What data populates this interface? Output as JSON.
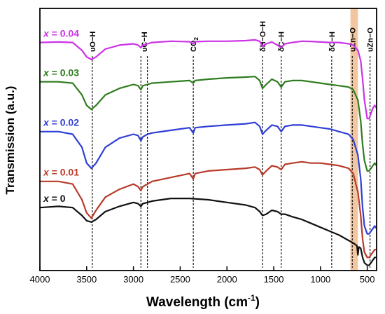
{
  "chart_data": {
    "type": "line",
    "xlabel": "Wavelength (cm",
    "xlabel_sup": "-1",
    "xlabel_end": ")",
    "ylabel": "Transmission (a.u.)",
    "xlim": [
      4000,
      400
    ],
    "x_reversed": true,
    "ylim": [
      0,
      100
    ],
    "grid": false,
    "xticks": [
      4000,
      3500,
      3000,
      2500,
      2000,
      1500,
      1000,
      500
    ],
    "series": [
      {
        "name": "x = 0.04",
        "prefix": "x",
        "value_text": " = 0.04",
        "color": "#CC33E6",
        "x": [
          4000,
          3800,
          3650,
          3550,
          3500,
          3450,
          3400,
          3300,
          3150,
          3000,
          2950,
          2920,
          2900,
          2850,
          2800,
          2600,
          2400,
          2360,
          2340,
          2200,
          2000,
          1800,
          1700,
          1650,
          1620,
          1580,
          1520,
          1460,
          1420,
          1380,
          1300,
          1200,
          1100,
          1000,
          900,
          800,
          700,
          650,
          600,
          570,
          550,
          530,
          500,
          480,
          460,
          440,
          420,
          400
        ],
        "y": [
          87,
          87.2,
          87,
          84,
          81.5,
          80.5,
          81.5,
          84.5,
          86,
          86.5,
          86,
          85,
          86,
          86.5,
          87,
          87.5,
          87.3,
          86.5,
          87.3,
          87.5,
          87.5,
          87.7,
          88,
          87.5,
          85.5,
          86.5,
          87.2,
          86,
          85,
          86.5,
          87,
          87.5,
          87.4,
          87.2,
          87,
          87,
          86.5,
          86,
          84,
          80,
          73,
          65,
          58,
          58,
          60,
          62,
          63,
          62
        ]
      },
      {
        "name": "x = 0.03",
        "prefix": "x",
        "value_text": " = 0.03",
        "color": "#2E7D1F",
        "x": [
          4000,
          3800,
          3650,
          3550,
          3500,
          3450,
          3400,
          3300,
          3150,
          3000,
          2950,
          2920,
          2900,
          2850,
          2800,
          2600,
          2400,
          2360,
          2340,
          2200,
          2000,
          1800,
          1700,
          1650,
          1620,
          1580,
          1520,
          1460,
          1420,
          1380,
          1300,
          1200,
          1100,
          1000,
          900,
          800,
          700,
          650,
          600,
          570,
          550,
          530,
          500,
          480,
          460,
          440,
          420,
          400
        ],
        "y": [
          72,
          72,
          71.5,
          67,
          63,
          61.5,
          63,
          67,
          69.5,
          71,
          70.5,
          69,
          70.5,
          71,
          71.5,
          72,
          72.5,
          71.5,
          72.5,
          73,
          73.5,
          73.8,
          74,
          72.5,
          69.5,
          71,
          73,
          72,
          70,
          72,
          72.5,
          72.5,
          72,
          71.5,
          71,
          70.5,
          70,
          69,
          65,
          57,
          48,
          42,
          38,
          38,
          39,
          40,
          41,
          40
        ]
      },
      {
        "name": "x = 0.02",
        "prefix": "x",
        "value_text": " = 0.02",
        "color": "#2F3FD6",
        "x": [
          4000,
          3800,
          3650,
          3550,
          3500,
          3450,
          3400,
          3300,
          3150,
          3000,
          2950,
          2920,
          2900,
          2850,
          2800,
          2600,
          2400,
          2360,
          2340,
          2200,
          2000,
          1800,
          1700,
          1650,
          1620,
          1580,
          1520,
          1460,
          1420,
          1380,
          1300,
          1200,
          1100,
          1000,
          900,
          800,
          700,
          650,
          600,
          570,
          550,
          530,
          500,
          480,
          460,
          440,
          420,
          400
        ],
        "y": [
          53,
          53,
          52,
          47,
          41,
          39,
          41,
          47,
          50.5,
          52,
          51.5,
          49.5,
          51,
          52,
          52.5,
          53.5,
          54.5,
          52.5,
          54.5,
          55,
          55.5,
          56,
          56.5,
          55,
          52,
          53.5,
          55.5,
          55,
          53,
          55,
          55.5,
          55.5,
          55,
          54.5,
          54,
          53,
          52,
          50,
          44,
          35,
          24,
          17,
          14,
          14,
          15,
          16,
          17,
          16
        ]
      },
      {
        "name": "x = 0.01",
        "prefix": "x",
        "value_text": " = 0.01",
        "color": "#B83A2A",
        "x": [
          4000,
          3800,
          3650,
          3550,
          3500,
          3450,
          3400,
          3300,
          3150,
          3000,
          2950,
          2920,
          2900,
          2850,
          2800,
          2600,
          2400,
          2360,
          2340,
          2200,
          2000,
          1800,
          1700,
          1650,
          1620,
          1580,
          1520,
          1460,
          1420,
          1380,
          1300,
          1200,
          1100,
          1000,
          900,
          800,
          700,
          650,
          600,
          570,
          550,
          530,
          500,
          480,
          460,
          440,
          420,
          400
        ],
        "y": [
          34,
          34,
          33,
          27,
          22,
          20,
          23,
          28,
          31,
          33,
          32,
          30.5,
          32,
          33,
          34,
          35.5,
          37,
          35,
          37,
          38,
          38.5,
          39,
          39.5,
          38.5,
          36.5,
          38,
          40,
          39.5,
          38.5,
          40.5,
          41,
          41.5,
          41,
          41,
          40.5,
          40,
          39,
          37,
          30,
          21,
          12,
          7,
          5,
          5,
          6,
          7,
          8,
          8
        ]
      },
      {
        "name": "x = 0",
        "prefix": "x",
        "value_text": " = 0",
        "color": "#111111",
        "x": [
          4000,
          3800,
          3650,
          3550,
          3500,
          3450,
          3400,
          3300,
          3150,
          3000,
          2950,
          2920,
          2900,
          2850,
          2800,
          2600,
          2400,
          2200,
          2000,
          1800,
          1700,
          1650,
          1620,
          1580,
          1520,
          1460,
          1420,
          1380,
          1300,
          1200,
          1100,
          1000,
          900,
          800,
          700,
          650,
          610,
          600,
          590,
          570,
          550,
          530,
          500,
          480,
          460,
          440,
          420,
          400
        ],
        "y": [
          24,
          24.5,
          24,
          21,
          19,
          18.5,
          19.5,
          22.5,
          24.5,
          26,
          25.5,
          24.5,
          25.5,
          26,
          26.5,
          27.5,
          27.5,
          27,
          26,
          25,
          24,
          22.5,
          21,
          21.5,
          23,
          22.5,
          21.5,
          21.5,
          20.5,
          19.5,
          18,
          16.5,
          15,
          13.5,
          11.5,
          10.5,
          9.5,
          6,
          9,
          8.5,
          5,
          3,
          2,
          2,
          3,
          4,
          5,
          5
        ]
      }
    ],
    "annotations": [
      {
        "label": "υO−H",
        "x": 3440
      },
      {
        "label": "υC−H",
        "x": 2920,
        "x2": 2850
      },
      {
        "label": "CO",
        "sub": "2",
        "x": 2360
      },
      {
        "label": "δH−O−H",
        "x": 1620
      },
      {
        "label": "δC−H",
        "x": 1420
      },
      {
        "label": "δC−H",
        "x": 880
      },
      {
        "label": "υZn−O",
        "x": 660
      },
      {
        "label": "υZn−O",
        "x": 470
      }
    ],
    "highlight_band": {
      "x_from": 680,
      "x_to": 600,
      "color": "#F2C6A0"
    }
  }
}
